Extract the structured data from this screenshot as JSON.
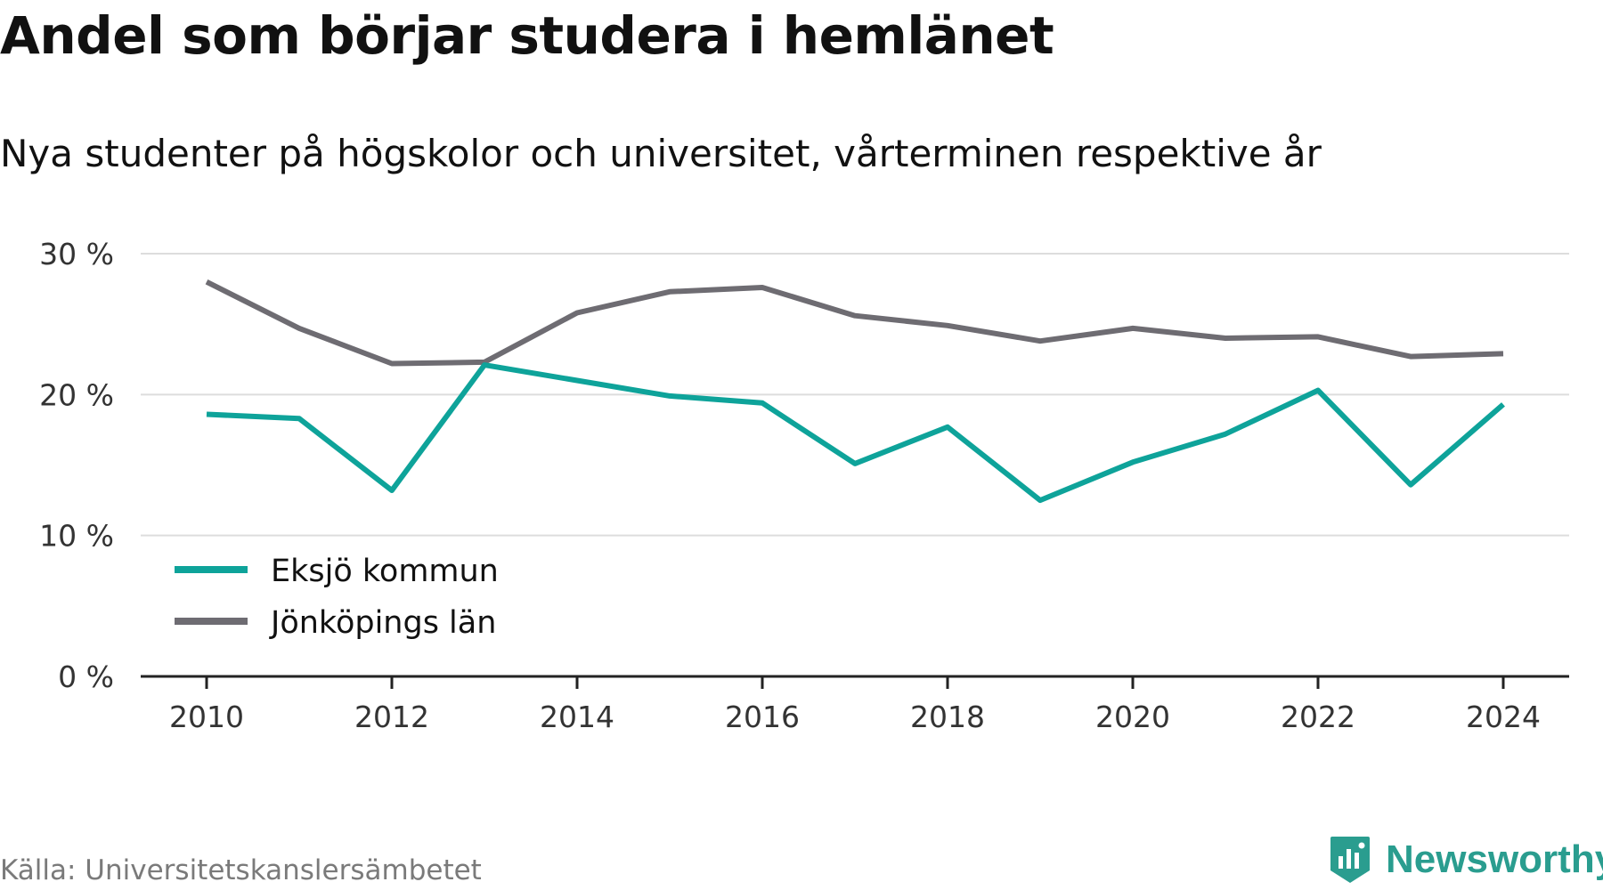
{
  "title": "Andel som börjar studera i hemlänet",
  "subtitle": "Nya studenter på högskolor och universitet, vårterminen respektive år",
  "source": "Källa: Universitetskanslersämbetet",
  "brand": {
    "name": "Newsworthy",
    "icon": "newsworthy-logo-icon"
  },
  "colors": {
    "eksjo": "#0ea39a",
    "jonkoping": "#6e6c72",
    "grid": "#dddddd",
    "axis": "#222222"
  },
  "chart_data": {
    "type": "line",
    "x": [
      2010,
      2011,
      2012,
      2013,
      2014,
      2015,
      2016,
      2017,
      2018,
      2019,
      2020,
      2021,
      2022,
      2023,
      2024
    ],
    "xticks": [
      2010,
      2012,
      2014,
      2016,
      2018,
      2020,
      2022,
      2024
    ],
    "yticks": [
      0,
      10,
      20,
      30
    ],
    "ytick_labels": [
      "0 %",
      "10 %",
      "20 %",
      "30 %"
    ],
    "ylim": [
      0,
      30
    ],
    "grid": true,
    "legend_position": "bottom-left",
    "series": [
      {
        "name": "Eksjö kommun",
        "color": "#0ea39a",
        "values": [
          18.6,
          18.3,
          13.2,
          22.1,
          21.0,
          19.9,
          19.4,
          15.1,
          17.7,
          12.5,
          15.2,
          17.2,
          20.3,
          13.6,
          19.3
        ]
      },
      {
        "name": "Jönköpings län",
        "color": "#6e6c72",
        "values": [
          28.0,
          24.7,
          22.2,
          22.3,
          25.8,
          27.3,
          27.6,
          25.6,
          24.9,
          23.8,
          24.7,
          24.0,
          24.1,
          22.7,
          22.9
        ]
      }
    ]
  }
}
